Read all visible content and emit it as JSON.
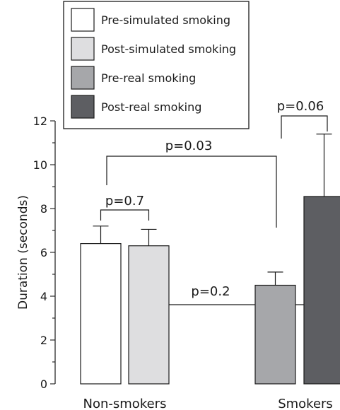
{
  "chart_data": {
    "type": "bar",
    "ylabel": "Duration (seconds)",
    "ylim": [
      0,
      12
    ],
    "yticks": [
      0,
      2,
      4,
      6,
      8,
      10,
      12
    ],
    "categories": [
      "Non-smokers",
      "Smokers"
    ],
    "series": [
      {
        "name": "Pre-simulated smoking",
        "group": "Non-smokers",
        "value": 6.4,
        "error": 0.8,
        "color": "#ffffff"
      },
      {
        "name": "Post-simulated smoking",
        "group": "Non-smokers",
        "value": 6.3,
        "error": 0.75,
        "color": "#dedee0"
      },
      {
        "name": "Pre-real smoking",
        "group": "Smokers",
        "value": 4.5,
        "error": 0.6,
        "color": "#a6a7aa"
      },
      {
        "name": "Post-real smoking",
        "group": "Smokers",
        "value": 8.55,
        "error": 2.85,
        "color": "#5d5e62"
      }
    ],
    "annotations": [
      {
        "text": "p=0.7",
        "from": "Pre-simulated smoking",
        "to": "Post-simulated smoking"
      },
      {
        "text": "p=0.03",
        "from": "Pre-simulated smoking",
        "to": "Pre-real smoking"
      },
      {
        "text": "p=0.06",
        "from": "Pre-real smoking",
        "to": "Post-real smoking"
      },
      {
        "text": "p=0.2",
        "from": "Post-simulated smoking",
        "to": "Post-real smoking"
      }
    ],
    "legend_position": "top"
  }
}
